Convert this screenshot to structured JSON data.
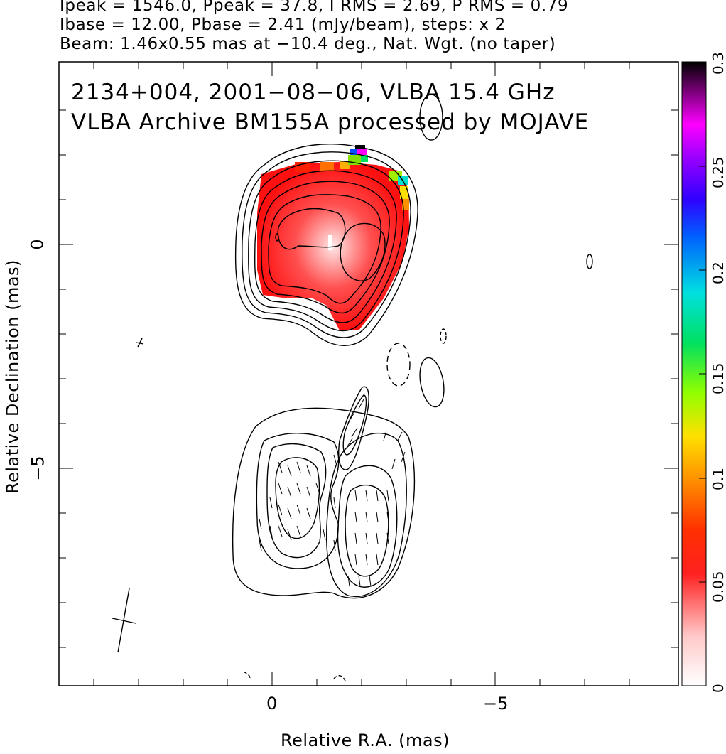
{
  "header": {
    "line1": "Ipeak = 1546.0, Ppeak = 37.8, I RMS = 2.69, P RMS = 0.79",
    "line2": "Ibase = 12.00, Pbase = 2.41 (mJy/beam), steps: x 2",
    "line3": "Beam: 1.46x0.55 mas at −10.4 deg., Nat. Wgt. (no taper)"
  },
  "plot": {
    "title_line1": "2134+004, 2001−08−06, VLBA 15.4 GHz",
    "title_line2": "VLBA Archive BM155A processed by MOJAVE",
    "x_label": "Relative R.A. (mas)",
    "y_label": "Relative Declination (mas)",
    "x_ticks": [
      "0",
      "−5"
    ],
    "y_ticks": [
      "0",
      "−5"
    ]
  },
  "colorbar": {
    "ticks": [
      "0",
      "0.05",
      "0.1",
      "0.15",
      "0.2",
      "0.25",
      "0.3"
    ]
  }
}
